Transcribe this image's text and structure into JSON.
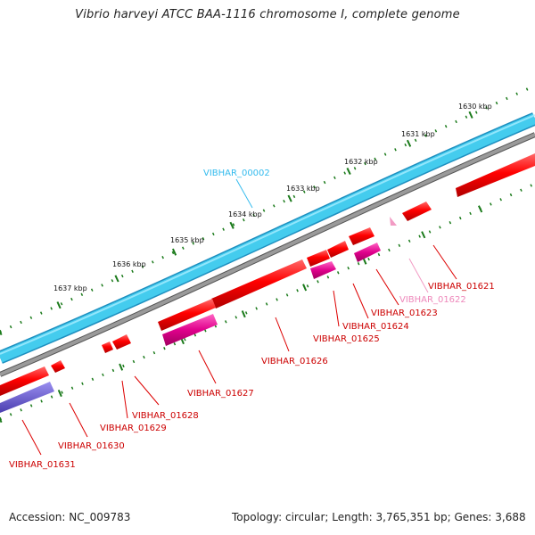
{
  "title": "Vibrio harveyi ATCC BAA-1116 chromosome I, complete genome",
  "footer": {
    "accession": "Accession: NC_009783",
    "info": "Topology: circular; Length: 3,765,351 bp; Genes: 3,688"
  },
  "colors": {
    "forward_strand": "#44ccee",
    "backbone": "#888888",
    "gene_red": "#ff0000",
    "gene_magenta": "#e0008c",
    "gene_pink": "#f29bc4",
    "gene_purple": "#6a5acd",
    "tick": "#1a7a1a"
  },
  "scale": {
    "labels": [
      "1630 kbp",
      "1631 kbp",
      "1632 kbp",
      "1633 kbp",
      "1634 kbp",
      "1635 kbp",
      "1636 kbp",
      "1637 kbp"
    ]
  },
  "genes": [
    {
      "label": "VIBHAR_00002",
      "color": "#33bbee"
    },
    {
      "label": "VIBHAR_01621",
      "color": "#cc0000"
    },
    {
      "label": "VIBHAR_01622",
      "color": "#ee88bb"
    },
    {
      "label": "VIBHAR_01623",
      "color": "#cc0000"
    },
    {
      "label": "VIBHAR_01624",
      "color": "#cc0000"
    },
    {
      "label": "VIBHAR_01625",
      "color": "#cc0000"
    },
    {
      "label": "VIBHAR_01626",
      "color": "#cc0000"
    },
    {
      "label": "VIBHAR_01627",
      "color": "#cc0000"
    },
    {
      "label": "VIBHAR_01628",
      "color": "#cc0000"
    },
    {
      "label": "VIBHAR_01629",
      "color": "#cc0000"
    },
    {
      "label": "VIBHAR_01630",
      "color": "#cc0000"
    },
    {
      "label": "VIBHAR_01631",
      "color": "#cc0000"
    }
  ]
}
